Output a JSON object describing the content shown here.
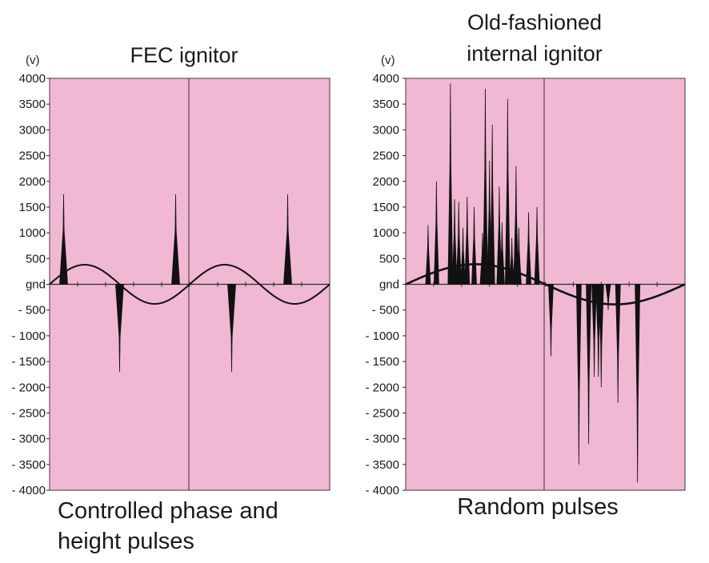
{
  "chart_data": [
    {
      "type": "line",
      "title": "FEC ignitor",
      "caption": [
        "Controlled phase and",
        "height pulses"
      ],
      "ylabel": "(v)",
      "ylim": [
        -4000,
        4000
      ],
      "ytick_values": [
        4000,
        3500,
        3000,
        2500,
        2000,
        1500,
        1000,
        500,
        0,
        -500,
        -1000,
        -1500,
        -2000,
        -2500,
        -3000,
        -3500,
        -4000
      ],
      "ytick_labels": [
        "4000",
        "3500",
        "3000",
        "2500",
        "2000",
        "1500",
        "1000",
        "500",
        "gnd",
        "- 500",
        "- 1000",
        "- 1500",
        "- 2000",
        "- 2500",
        "- 3000",
        "- 3500",
        "- 4000"
      ],
      "xlim": [
        0,
        1
      ],
      "sine": {
        "amplitude": 380,
        "cycles": 2,
        "phase": "start at 0, rising"
      },
      "pulses": [
        {
          "x": 0.05,
          "peak": 1750
        },
        {
          "x": 0.25,
          "peak": -1700
        },
        {
          "x": 0.45,
          "peak": 1750
        },
        {
          "x": 0.65,
          "peak": -1700
        },
        {
          "x": 0.85,
          "peak": 1750
        }
      ],
      "background_color": "#f1b8d3"
    },
    {
      "type": "line",
      "title": "Old-fashioned\ninternal ignitor",
      "title_lines": [
        "Old-fashioned",
        "internal ignitor"
      ],
      "caption": [
        "Random pulses"
      ],
      "ylabel": "(v)",
      "ylim": [
        -4000,
        4000
      ],
      "ytick_values": [
        4000,
        3500,
        3000,
        2500,
        2000,
        1500,
        1000,
        500,
        0,
        -500,
        -1000,
        -1500,
        -2000,
        -2500,
        -3000,
        -3500,
        -4000
      ],
      "ytick_labels": [
        "4000",
        "3500",
        "3000",
        "2500",
        "2000",
        "1500",
        "1000",
        "500",
        "gnd",
        "- 500",
        "- 1000",
        "- 1500",
        "- 2000",
        "- 2500",
        "- 3000",
        "- 3500",
        "- 4000"
      ],
      "xlim": [
        0,
        1
      ],
      "sine": {
        "amplitude": 390,
        "cycles": 1,
        "phase": "start at 0, rising"
      },
      "pulses": [
        {
          "x": 0.08,
          "peak": 1150
        },
        {
          "x": 0.11,
          "peak": 2000
        },
        {
          "x": 0.16,
          "peak": 3900
        },
        {
          "x": 0.175,
          "peak": 1650
        },
        {
          "x": 0.19,
          "peak": 1600
        },
        {
          "x": 0.205,
          "peak": 1100
        },
        {
          "x": 0.22,
          "peak": 1700
        },
        {
          "x": 0.245,
          "peak": 1500
        },
        {
          "x": 0.275,
          "peak": 1000
        },
        {
          "x": 0.285,
          "peak": 3800
        },
        {
          "x": 0.3,
          "peak": 2400
        },
        {
          "x": 0.31,
          "peak": 3100
        },
        {
          "x": 0.335,
          "peak": 1900
        },
        {
          "x": 0.345,
          "peak": 1200
        },
        {
          "x": 0.365,
          "peak": 3600
        },
        {
          "x": 0.38,
          "peak": 900
        },
        {
          "x": 0.395,
          "peak": 600
        },
        {
          "x": 0.405,
          "peak": 1100
        },
        {
          "x": 0.395,
          "peak": 2300
        },
        {
          "x": 0.44,
          "peak": 1400
        },
        {
          "x": 0.47,
          "peak": 1500
        },
        {
          "x": 0.52,
          "peak": -1400
        },
        {
          "x": 0.62,
          "peak": -3500
        },
        {
          "x": 0.655,
          "peak": -3100
        },
        {
          "x": 0.675,
          "peak": -1800
        },
        {
          "x": 0.69,
          "peak": -1800
        },
        {
          "x": 0.7,
          "peak": -2000
        },
        {
          "x": 0.725,
          "peak": -500
        },
        {
          "x": 0.76,
          "peak": -2300
        },
        {
          "x": 0.83,
          "peak": -3850
        }
      ],
      "background_color": "#f1b8d3"
    }
  ]
}
